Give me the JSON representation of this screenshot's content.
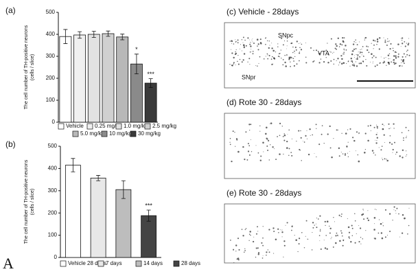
{
  "chart_data": [
    {
      "type": "bar",
      "panel": "(a)",
      "ylabel": [
        "The cell number of TH-positive neurons",
        "(cells / slice)"
      ],
      "categories": [
        "Vehicle",
        "0.25 mg/kg",
        "1.0 mg/kg",
        "2.5 mg/kg",
        "5.0 mg/kg",
        "10 mg/kg",
        "30 mg/kg"
      ],
      "values": [
        390,
        397,
        400,
        403,
        388,
        265,
        178
      ],
      "errors": [
        32,
        15,
        14,
        12,
        13,
        45,
        20
      ],
      "significance": [
        null,
        null,
        null,
        null,
        null,
        "*",
        "***"
      ],
      "colors": [
        "#ffffff",
        "#f0f0f0",
        "#e2e2e2",
        "#d0d0d0",
        "#b8b8b8",
        "#8a8a8a",
        "#3a3a3a"
      ],
      "ylim": [
        0,
        500
      ],
      "yticks": [
        0,
        100,
        200,
        300,
        400,
        500
      ]
    },
    {
      "type": "bar",
      "panel": "(b)",
      "ylabel": [
        "The cell number of TH-positive neurons",
        "(cells / slice)"
      ],
      "categories": [
        "Vehicle 28 days",
        "7 days",
        "14 days",
        "28 days"
      ],
      "values": [
        415,
        357,
        305,
        188
      ],
      "errors": [
        30,
        12,
        40,
        25
      ],
      "significance": [
        null,
        null,
        null,
        "***"
      ],
      "colors": [
        "#ffffff",
        "#e8e8e8",
        "#bdbdbd",
        "#444444"
      ],
      "ylim": [
        0,
        500
      ],
      "yticks": [
        0,
        100,
        200,
        300,
        400,
        500
      ]
    }
  ],
  "panels": [
    {
      "title": "(c) Vehicle - 28days",
      "labels": [
        "SNpc",
        "VTA",
        "SNpr"
      ]
    },
    {
      "title": "(d) Rote 30 - 28days"
    },
    {
      "title": "(e) Rote 30 - 28days"
    }
  ],
  "figure_label": "A"
}
